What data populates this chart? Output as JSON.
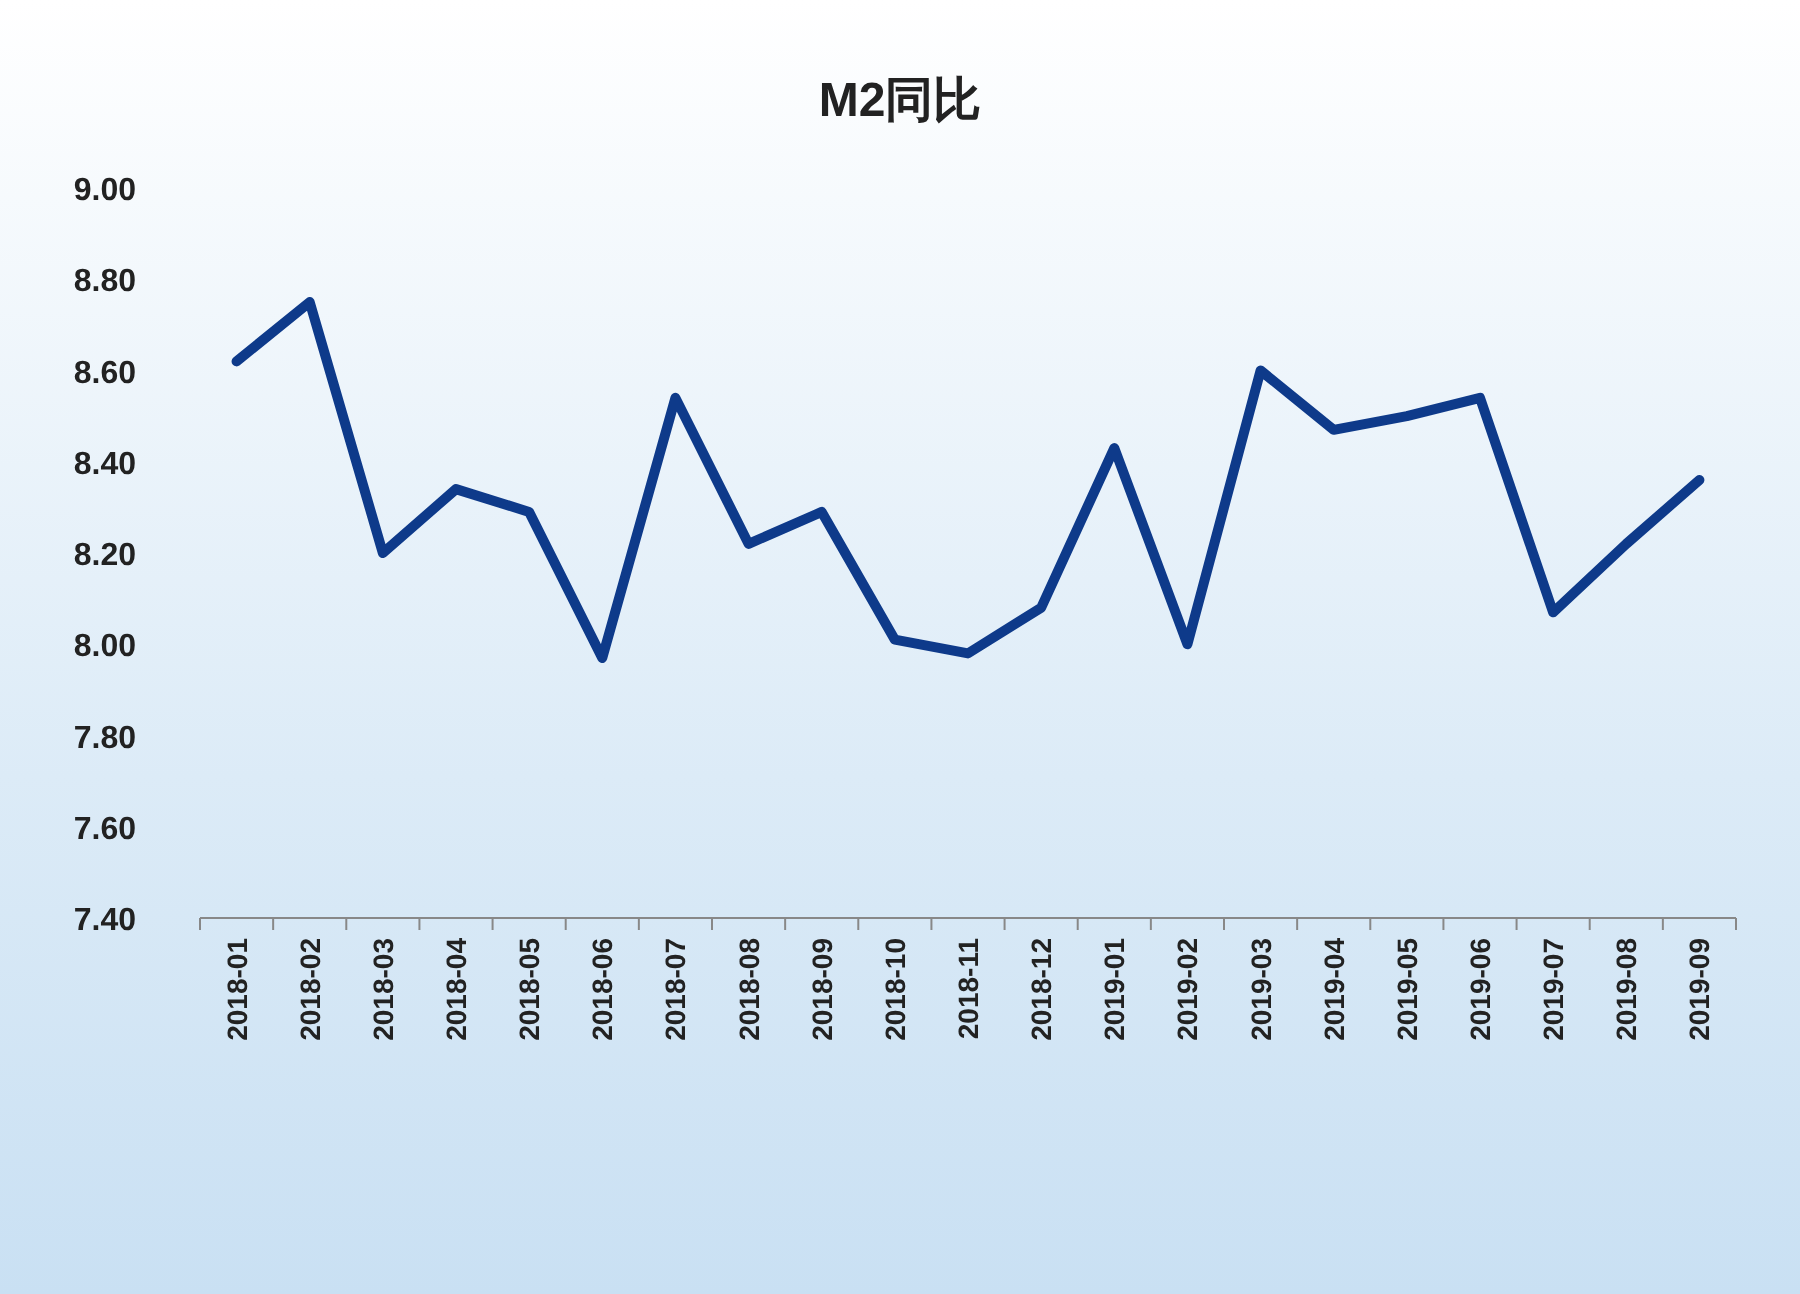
{
  "chart_data": {
    "type": "line",
    "title": "M2同比",
    "categories": [
      "2018-01",
      "2018-02",
      "2018-03",
      "2018-04",
      "2018-05",
      "2018-06",
      "2018-07",
      "2018-08",
      "2018-09",
      "2018-10",
      "2018-11",
      "2018-12",
      "2019-01",
      "2019-02",
      "2019-03",
      "2019-04",
      "2019-05",
      "2019-06",
      "2019-07",
      "2019-08",
      "2019-09"
    ],
    "series": [
      {
        "color": "#0e3a8a",
        "values": [
          8.62,
          8.75,
          8.2,
          8.34,
          8.29,
          7.97,
          8.54,
          8.22,
          8.29,
          8.01,
          7.98,
          8.08,
          8.43,
          8.0,
          8.6,
          8.47,
          8.5,
          8.54,
          8.07,
          8.22,
          8.36
        ]
      }
    ],
    "ylim": [
      7.4,
      9.0
    ],
    "yticks": [
      {
        "value": 7.4,
        "label": "7.40"
      },
      {
        "value": 7.6,
        "label": "7.60"
      },
      {
        "value": 7.8,
        "label": "7.80"
      },
      {
        "value": 8.0,
        "label": "8.00"
      },
      {
        "value": 8.2,
        "label": "8.20"
      },
      {
        "value": 8.4,
        "label": "8.40"
      },
      {
        "value": 8.6,
        "label": "8.60"
      },
      {
        "value": 8.8,
        "label": "8.80"
      },
      {
        "value": 9.0,
        "label": "9.00"
      }
    ]
  }
}
